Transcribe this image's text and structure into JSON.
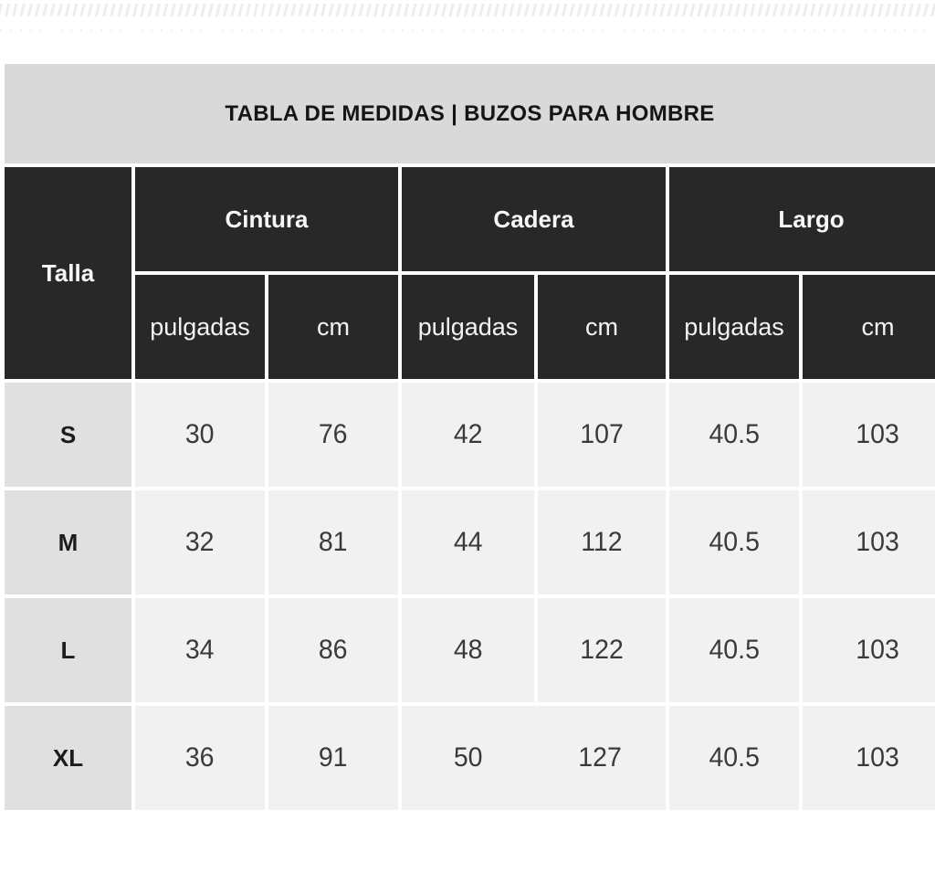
{
  "title": "TABLA DE MEDIDAS | BUZOS PARA HOMBRE",
  "table": {
    "corner_header": "Talla",
    "groups": [
      {
        "label": "Cintura"
      },
      {
        "label": "Cadera"
      },
      {
        "label": "Largo"
      }
    ],
    "unit_headers": [
      "pulgadas",
      "cm",
      "pulgadas",
      "cm",
      "pulgadas",
      "cm"
    ],
    "rows": [
      {
        "size": "S",
        "values": [
          "30",
          "76",
          "42",
          "107",
          "40.5",
          "103"
        ]
      },
      {
        "size": "M",
        "values": [
          "32",
          "81",
          "44",
          "112",
          "40.5",
          "103"
        ]
      },
      {
        "size": "L",
        "values": [
          "34",
          "86",
          "48",
          "122",
          "40.5",
          "103"
        ]
      },
      {
        "size": "XL",
        "values": [
          "36",
          "91",
          "50",
          "127",
          "40.5",
          "103"
        ]
      }
    ]
  },
  "colors": {
    "header_bg": "#282828",
    "header_text": "#f7f7f7",
    "title_bar_bg": "#d9d9d9",
    "size_col_bg": "#e0e0e0",
    "cell_bg": "#f1f1f2",
    "value_text": "#3a3a3a",
    "title_text": "#151515"
  }
}
